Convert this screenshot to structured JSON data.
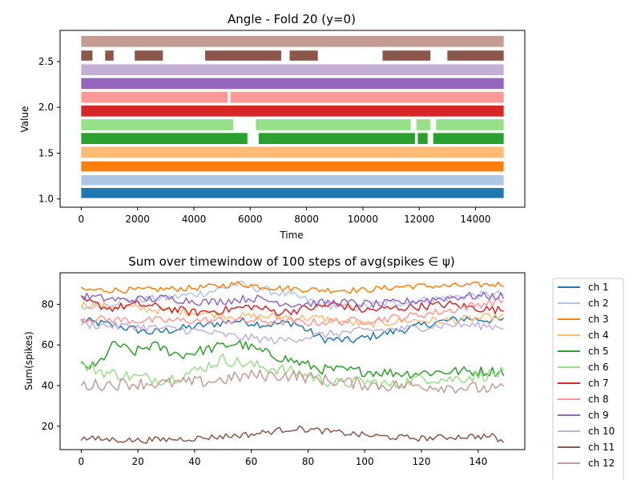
{
  "chart_data": [
    {
      "type": "band",
      "title": "Angle - Fold 20 (y=0)",
      "xlabel": "Time",
      "ylabel": "Value",
      "xlim": [
        -750,
        15750
      ],
      "ylim": [
        0.91,
        2.84
      ],
      "xticks": [
        0,
        2000,
        4000,
        6000,
        8000,
        10000,
        12000,
        14000
      ],
      "yticks": [
        1.0,
        1.5,
        2.0,
        2.5
      ],
      "ytick_labels": [
        "1.0",
        "1.5",
        "2.0",
        "2.5"
      ],
      "x_range": [
        0,
        15000
      ],
      "channels": [
        {
          "name": "ch 1",
          "low": 1.01,
          "high": 1.12,
          "color": "#1f77b4"
        },
        {
          "name": "ch 2",
          "low": 1.15,
          "high": 1.26,
          "color": "#aec7e8"
        },
        {
          "name": "ch 3",
          "low": 1.3,
          "high": 1.41,
          "color": "#ff7f0e"
        },
        {
          "name": "ch 4",
          "low": 1.45,
          "high": 1.57,
          "color": "#ffbb78"
        },
        {
          "name": "ch 5",
          "low": 1.6,
          "high": 1.72,
          "color": "#2ca02c"
        },
        {
          "name": "ch 6",
          "low": 1.75,
          "high": 1.87,
          "color": "#98df8a"
        },
        {
          "name": "ch 7",
          "low": 1.9,
          "high": 2.02,
          "color": "#d62728"
        },
        {
          "name": "ch 8",
          "low": 2.05,
          "high": 2.17,
          "color": "#ff9896"
        },
        {
          "name": "ch 9",
          "low": 2.2,
          "high": 2.32,
          "color": "#9467bd"
        },
        {
          "name": "ch 10",
          "low": 2.35,
          "high": 2.47,
          "color": "#c5b0d5"
        },
        {
          "name": "ch 11",
          "low": 2.51,
          "high": 2.62,
          "color": "#8c564b"
        },
        {
          "name": "ch 12",
          "low": 2.66,
          "high": 2.78,
          "color": "#c49c94"
        }
      ],
      "gaps": [
        {
          "channel": "ch 11",
          "from": 400,
          "to": 850
        },
        {
          "channel": "ch 11",
          "from": 1150,
          "to": 1900
        },
        {
          "channel": "ch 11",
          "from": 2900,
          "to": 4400
        },
        {
          "channel": "ch 11",
          "from": 7100,
          "to": 7400
        },
        {
          "channel": "ch 11",
          "from": 8400,
          "to": 10700
        },
        {
          "channel": "ch 11",
          "from": 12400,
          "to": 13000
        },
        {
          "channel": "ch 8",
          "from": 5200,
          "to": 5300
        },
        {
          "channel": "ch 6",
          "from": 5400,
          "to": 6200
        },
        {
          "channel": "ch 6",
          "from": 11700,
          "to": 11900
        },
        {
          "channel": "ch 6",
          "from": 12400,
          "to": 12600
        },
        {
          "channel": "ch 5",
          "from": 5900,
          "to": 6300
        },
        {
          "channel": "ch 5",
          "from": 11850,
          "to": 11950
        },
        {
          "channel": "ch 5",
          "from": 12300,
          "to": 12500
        }
      ]
    },
    {
      "type": "line",
      "title": "Sum over timewindow of 100 steps of avg(spikes ∈ ψ)",
      "xlabel": "",
      "ylabel": "Sum(spikes)",
      "xlim": [
        -7.45,
        156.45
      ],
      "ylim": [
        8.5,
        95.5
      ],
      "xticks": [
        0,
        20,
        40,
        60,
        80,
        100,
        120,
        140
      ],
      "yticks": [
        20,
        40,
        60,
        80
      ],
      "x": {
        "start": 0,
        "end": 149,
        "step": 1
      },
      "series": [
        {
          "name": "ch 1",
          "color": "#1f77b4",
          "anchors": [
            [
              0,
              72
            ],
            [
              10,
              70
            ],
            [
              25,
              66
            ],
            [
              40,
              69
            ],
            [
              55,
              72
            ],
            [
              65,
              70
            ],
            [
              75,
              71
            ],
            [
              85,
              63
            ],
            [
              95,
              62
            ],
            [
              105,
              65
            ],
            [
              115,
              68
            ],
            [
              125,
              71
            ],
            [
              135,
              73
            ],
            [
              149,
              72
            ]
          ],
          "noise": 2
        },
        {
          "name": "ch 2",
          "color": "#aec7e8",
          "anchors": [
            [
              0,
              78
            ],
            [
              15,
              82
            ],
            [
              30,
              83
            ],
            [
              45,
              86
            ],
            [
              55,
              90
            ],
            [
              65,
              87
            ],
            [
              75,
              84
            ],
            [
              85,
              80
            ],
            [
              95,
              78
            ],
            [
              105,
              80
            ],
            [
              120,
              82
            ],
            [
              135,
              84
            ],
            [
              149,
              85
            ]
          ],
          "noise": 2
        },
        {
          "name": "ch 3",
          "color": "#ff7f0e",
          "anchors": [
            [
              0,
              87
            ],
            [
              20,
              87
            ],
            [
              40,
              88
            ],
            [
              55,
              90
            ],
            [
              70,
              88
            ],
            [
              85,
              87
            ],
            [
              100,
              87
            ],
            [
              115,
              89
            ],
            [
              130,
              89
            ],
            [
              149,
              90
            ]
          ],
          "noise": 1.5
        },
        {
          "name": "ch 4",
          "color": "#ffbb78",
          "anchors": [
            [
              0,
              80
            ],
            [
              20,
              78
            ],
            [
              40,
              76
            ],
            [
              55,
              74
            ],
            [
              70,
              74
            ],
            [
              85,
              73
            ],
            [
              100,
              70
            ],
            [
              115,
              72
            ],
            [
              130,
              72
            ],
            [
              149,
              74
            ]
          ],
          "noise": 2
        },
        {
          "name": "ch 5",
          "color": "#2ca02c",
          "anchors": [
            [
              0,
              50
            ],
            [
              5,
              49
            ],
            [
              12,
              61
            ],
            [
              18,
              56
            ],
            [
              25,
              60
            ],
            [
              35,
              55
            ],
            [
              45,
              58
            ],
            [
              55,
              61
            ],
            [
              65,
              56
            ],
            [
              75,
              52
            ],
            [
              85,
              48
            ],
            [
              100,
              47
            ],
            [
              115,
              46
            ],
            [
              130,
              47
            ],
            [
              149,
              47
            ]
          ],
          "noise": 2.5
        },
        {
          "name": "ch 6",
          "color": "#98df8a",
          "anchors": [
            [
              0,
              50
            ],
            [
              10,
              46
            ],
            [
              20,
              44
            ],
            [
              30,
              43
            ],
            [
              40,
              47
            ],
            [
              50,
              53
            ],
            [
              60,
              50
            ],
            [
              70,
              48
            ],
            [
              80,
              45
            ],
            [
              90,
              41
            ],
            [
              100,
              42
            ],
            [
              110,
              40
            ],
            [
              120,
              44
            ],
            [
              130,
              43
            ],
            [
              140,
              45
            ],
            [
              149,
              46
            ]
          ],
          "noise": 3
        },
        {
          "name": "ch 7",
          "color": "#d62728",
          "anchors": [
            [
              0,
              82
            ],
            [
              10,
              78
            ],
            [
              20,
              80
            ],
            [
              30,
              78
            ],
            [
              40,
              76
            ],
            [
              50,
              77
            ],
            [
              60,
              79
            ],
            [
              70,
              76
            ],
            [
              80,
              78
            ],
            [
              90,
              80
            ],
            [
              100,
              77
            ],
            [
              110,
              78
            ],
            [
              120,
              79
            ],
            [
              130,
              80
            ],
            [
              140,
              78
            ],
            [
              149,
              77
            ]
          ],
          "noise": 2
        },
        {
          "name": "ch 8",
          "color": "#ff9896",
          "anchors": [
            [
              0,
              73
            ],
            [
              20,
              72
            ],
            [
              40,
              72
            ],
            [
              60,
              72
            ],
            [
              80,
              71
            ],
            [
              100,
              72
            ],
            [
              115,
              74
            ],
            [
              130,
              77
            ],
            [
              140,
              80
            ],
            [
              149,
              82
            ]
          ],
          "noise": 2
        },
        {
          "name": "ch 9",
          "color": "#9467bd",
          "anchors": [
            [
              0,
              84
            ],
            [
              15,
              82
            ],
            [
              30,
              83
            ],
            [
              45,
              81
            ],
            [
              60,
              83
            ],
            [
              75,
              80
            ],
            [
              90,
              81
            ],
            [
              105,
              80
            ],
            [
              120,
              82
            ],
            [
              135,
              84
            ],
            [
              149,
              84
            ]
          ],
          "noise": 2
        },
        {
          "name": "ch 10",
          "color": "#c5b0d5",
          "anchors": [
            [
              0,
              70
            ],
            [
              20,
              69
            ],
            [
              40,
              67
            ],
            [
              55,
              64
            ],
            [
              70,
              62
            ],
            [
              85,
              65
            ],
            [
              100,
              67
            ],
            [
              115,
              68
            ],
            [
              130,
              70
            ],
            [
              149,
              69
            ]
          ],
          "noise": 2
        },
        {
          "name": "ch 11",
          "color": "#8c564b",
          "anchors": [
            [
              0,
              14
            ],
            [
              20,
              13
            ],
            [
              40,
              14
            ],
            [
              60,
              16
            ],
            [
              75,
              19
            ],
            [
              90,
              17
            ],
            [
              105,
              15
            ],
            [
              120,
              14
            ],
            [
              135,
              15
            ],
            [
              145,
              15
            ],
            [
              149,
              12
            ]
          ],
          "noise": 1.5
        },
        {
          "name": "ch 12",
          "color": "#c49c94",
          "anchors": [
            [
              0,
              40
            ],
            [
              15,
              41
            ],
            [
              30,
              41
            ],
            [
              45,
              42
            ],
            [
              60,
              45
            ],
            [
              75,
              45
            ],
            [
              90,
              42
            ],
            [
              105,
              40
            ],
            [
              120,
              40
            ],
            [
              135,
              39
            ],
            [
              149,
              38
            ]
          ],
          "noise": 3
        }
      ]
    }
  ]
}
